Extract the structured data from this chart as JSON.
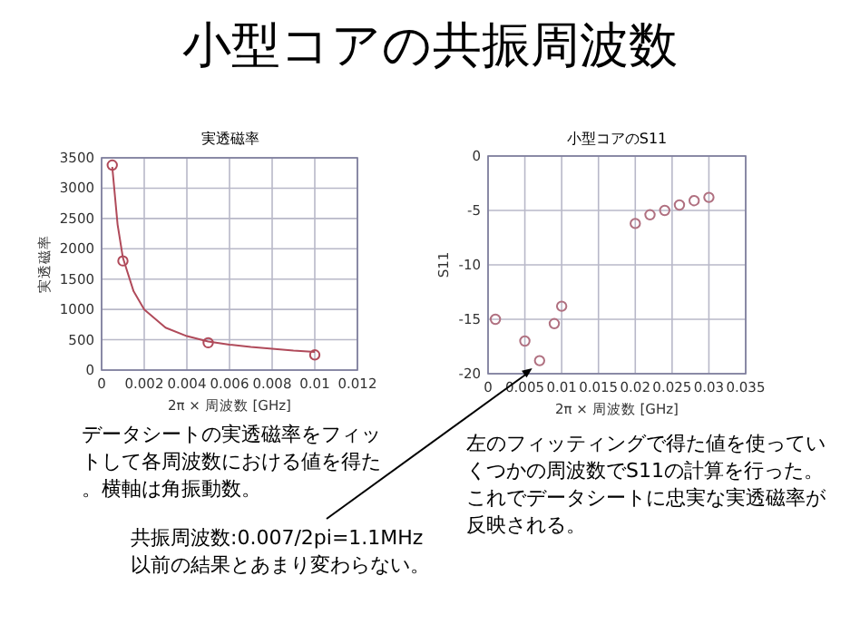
{
  "chart_data": [
    {
      "type": "scatter",
      "title": "実透磁率",
      "xlabel": "2π × 周波数 [GHz]",
      "ylabel": "実透磁率",
      "xlim": [
        0,
        0.012
      ],
      "xticks": [
        0,
        0.002,
        0.004,
        0.006,
        0.008,
        0.01,
        0.012
      ],
      "ylim": [
        0,
        3500
      ],
      "yticks": [
        0,
        500,
        1000,
        1500,
        2000,
        2500,
        3000,
        3500
      ],
      "grid": true,
      "series": [
        {
          "type": "scatter",
          "marker": "circle",
          "color": "#b04a5a",
          "x": [
            0.0005,
            0.001,
            0.005,
            0.01
          ],
          "values": [
            3380,
            1800,
            450,
            250
          ]
        },
        {
          "type": "line",
          "marker": "none",
          "color": "#b04a5a",
          "x": [
            0.0005,
            0.00075,
            0.001,
            0.0015,
            0.002,
            0.003,
            0.004,
            0.005,
            0.006,
            0.007,
            0.008,
            0.009,
            0.01
          ],
          "values": [
            3350,
            2400,
            1850,
            1300,
            1000,
            700,
            560,
            470,
            420,
            380,
            350,
            320,
            300
          ]
        }
      ]
    },
    {
      "type": "scatter",
      "title": "小型コアのS11",
      "xlabel": "2π × 周波数 [GHz]",
      "ylabel": "S11",
      "xlim": [
        0,
        0.035
      ],
      "xticks": [
        0,
        0.005,
        0.01,
        0.015,
        0.02,
        0.025,
        0.03,
        0.035
      ],
      "ylim": [
        -20,
        0
      ],
      "yticks": [
        -20,
        -15,
        -10,
        -5,
        0
      ],
      "grid": true,
      "marker": "circle",
      "series": [
        {
          "color": "#b07080",
          "x": [
            0.001,
            0.005,
            0.007,
            0.009,
            0.01,
            0.02,
            0.022,
            0.024,
            0.026,
            0.028,
            0.03
          ],
          "values": [
            -15,
            -17,
            -18.8,
            -15.4,
            -13.8,
            -6.2,
            -5.4,
            -5,
            -4.5,
            -4.1,
            -3.8
          ]
        }
      ],
      "annotations": [
        {
          "text": "共振周波数:0.007/2pi=1.1MHz\n以前の結果とあまり変わらない。",
          "x": 0.006,
          "y": -19.5
        }
      ]
    },
    {
      "type": "other",
      "title": "小型コアの共振周波数",
      "annotations": [
        "データシートの実透磁率をフィットして各周波数における値を得た。横軸は角振動数。",
        "左のフィッティングで得た値を使っていくつかの周波数でS11の計算を行った。これでデータシートに忠実な実透磁率が反映される。"
      ]
    }
  ]
}
